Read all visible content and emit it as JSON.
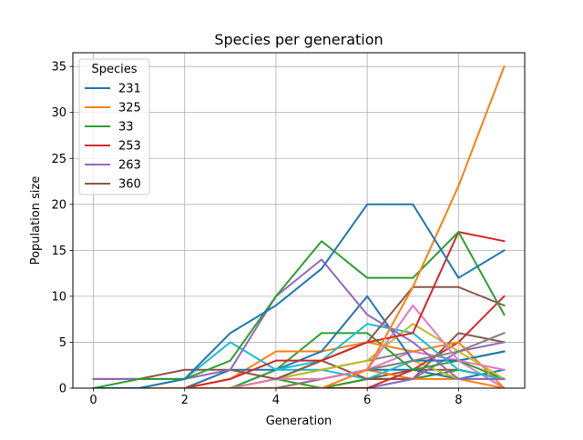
{
  "chart_data": {
    "type": "line",
    "title": "Species per generation",
    "xlabel": "Generation",
    "ylabel": "Population size",
    "xlim": [
      -0.45,
      9.45
    ],
    "ylim": [
      0,
      36.5
    ],
    "x_ticks": [
      0,
      2,
      4,
      6,
      8
    ],
    "y_ticks": [
      0,
      5,
      10,
      15,
      20,
      25,
      30,
      35
    ],
    "grid": true,
    "legend": {
      "title": "Species",
      "placement": "upper-left"
    },
    "x": [
      0,
      1,
      2,
      3,
      4,
      5,
      6,
      7,
      8,
      9
    ],
    "series": [
      {
        "name": "231",
        "color": "#1f77b4",
        "values": [
          0,
          0,
          1,
          6,
          9,
          13,
          20,
          20,
          12,
          15
        ]
      },
      {
        "name": "325",
        "color": "#ff7f0e",
        "values": [
          0,
          0,
          0,
          0,
          0,
          0,
          2,
          11,
          22,
          35
        ]
      },
      {
        "name": "33",
        "color": "#2ca02c",
        "values": [
          0,
          1,
          1,
          3,
          10,
          16,
          12,
          12,
          17,
          8
        ]
      },
      {
        "name": "253",
        "color": "#d62728",
        "values": [
          0,
          0,
          0,
          1,
          3,
          3,
          5,
          6,
          17,
          16
        ]
      },
      {
        "name": "263",
        "color": "#9467bd",
        "values": [
          1,
          1,
          1,
          2,
          10,
          14,
          8,
          5,
          1,
          1
        ]
      },
      {
        "name": "360",
        "color": "#8c564b",
        "values": [
          1,
          1,
          2,
          2,
          1,
          3,
          5,
          11,
          11,
          9
        ]
      },
      {
        "color": "#e377c2",
        "values": [
          0,
          0,
          0,
          0,
          1,
          1,
          2,
          9,
          3,
          2
        ]
      },
      {
        "color": "#7f7f7f",
        "values": [
          0,
          0,
          0,
          0,
          0,
          1,
          2,
          3,
          4,
          6
        ]
      },
      {
        "color": "#bcbd22",
        "values": [
          0,
          0,
          0,
          0,
          1,
          2,
          3,
          7,
          4,
          1
        ]
      },
      {
        "color": "#17becf",
        "values": [
          0,
          0,
          1,
          5,
          2,
          3,
          7,
          6,
          2,
          1
        ]
      },
      {
        "color": "#1f77b4",
        "values": [
          0,
          0,
          0,
          2,
          2,
          4,
          10,
          3,
          3,
          4
        ]
      },
      {
        "color": "#ff7f0e",
        "values": [
          0,
          0,
          0,
          1,
          4,
          4,
          5,
          4,
          5,
          0
        ]
      },
      {
        "color": "#2ca02c",
        "values": [
          0,
          0,
          0,
          0,
          2,
          6,
          6,
          2,
          3,
          1
        ]
      },
      {
        "color": "#d62728",
        "values": [
          0,
          0,
          0,
          0,
          0,
          0,
          0,
          2,
          5,
          10
        ]
      },
      {
        "color": "#9467bd",
        "values": [
          0,
          0,
          0,
          0,
          0,
          0,
          0,
          1,
          4,
          5
        ]
      },
      {
        "color": "#8c564b",
        "values": [
          0,
          0,
          0,
          0,
          1,
          3,
          1,
          1,
          6,
          5
        ]
      },
      {
        "color": "#e377c2",
        "values": [
          0,
          0,
          0,
          0,
          0,
          1,
          2,
          4,
          3,
          0
        ]
      },
      {
        "color": "#7f7f7f",
        "values": [
          0,
          0,
          0,
          0,
          1,
          2,
          3,
          4,
          3,
          4
        ]
      },
      {
        "color": "#bcbd22",
        "values": [
          0,
          0,
          0,
          2,
          1,
          1,
          2,
          3,
          1,
          1
        ]
      },
      {
        "color": "#17becf",
        "values": [
          0,
          0,
          0,
          0,
          2,
          2,
          1,
          3,
          3,
          4
        ]
      },
      {
        "color": "#1f77b4",
        "values": [
          0,
          0,
          0,
          0,
          0,
          1,
          2,
          2,
          1,
          2
        ]
      },
      {
        "color": "#ff7f0e",
        "values": [
          0,
          0,
          0,
          0,
          0,
          1,
          2,
          1,
          1,
          0
        ]
      },
      {
        "color": "#2ca02c",
        "values": [
          0,
          0,
          0,
          0,
          1,
          0,
          1,
          1,
          2,
          1
        ]
      },
      {
        "color": "#d62728",
        "values": [
          0,
          0,
          0,
          0,
          0,
          0,
          1,
          1,
          2,
          1
        ]
      },
      {
        "color": "#9467bd",
        "values": [
          0,
          0,
          0,
          0,
          0,
          0,
          0,
          1,
          2,
          1
        ]
      },
      {
        "color": "#8c564b",
        "values": [
          0,
          0,
          0,
          0,
          0,
          0,
          1,
          2,
          2,
          1
        ]
      }
    ]
  }
}
